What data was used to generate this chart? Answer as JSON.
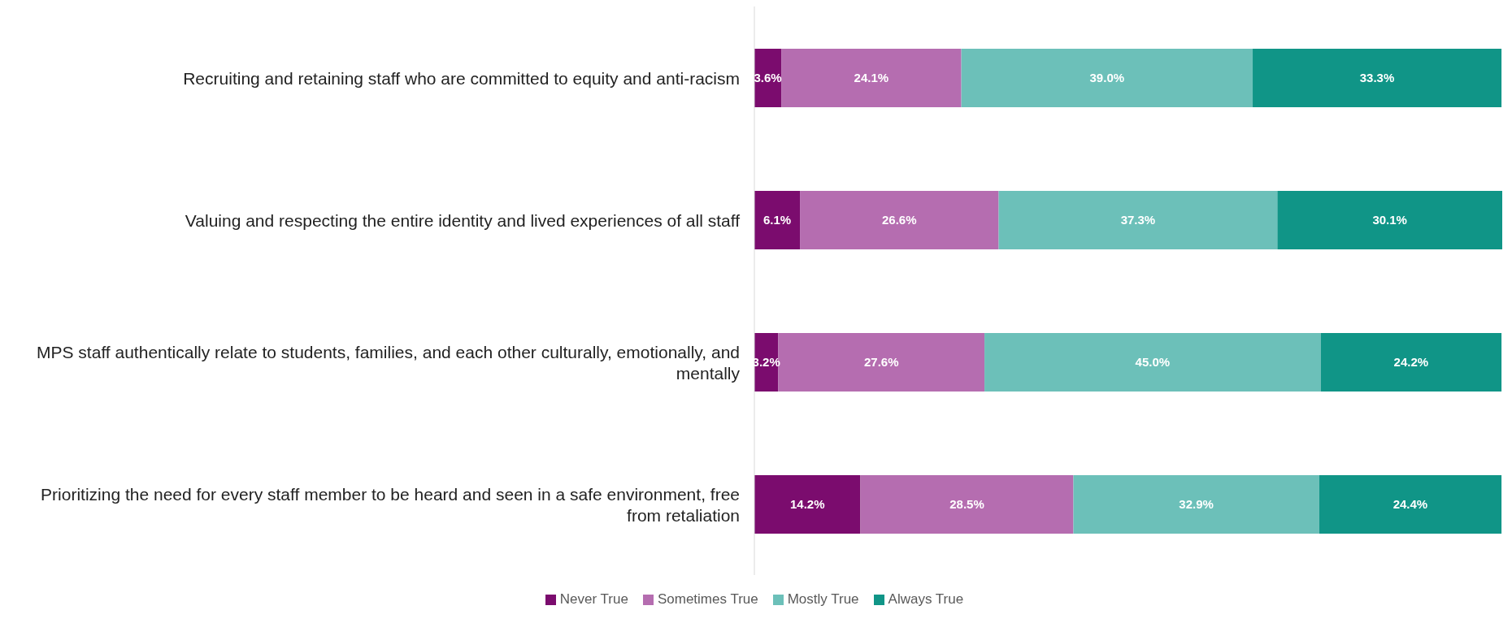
{
  "chart_data": {
    "type": "bar",
    "orientation": "horizontal",
    "stacked": true,
    "legend": "bottom",
    "grid": false,
    "categories": [
      "Recruiting and retaining staff who are committed to equity and anti-racism",
      "Valuing and respecting the entire identity and lived experiences of all staff",
      "MPS staff authentically relate to students, families, and each other culturally, emotionally, and mentally",
      "Prioritizing the need for every staff member to be heard and seen in a safe environment, free from retaliation"
    ],
    "series": [
      {
        "name": "Never True",
        "color": "#7b0c6e",
        "values": [
          3.6,
          6.1,
          3.2,
          14.2
        ],
        "value_labels": [
          "3.6%",
          "6.1%",
          "3.2%",
          "14.2%"
        ]
      },
      {
        "name": "Sometimes True",
        "color": "#b56db0",
        "values": [
          24.1,
          26.6,
          27.6,
          28.5
        ],
        "value_labels": [
          "24.1%",
          "26.6%",
          "27.6%",
          "28.5%"
        ]
      },
      {
        "name": "Mostly True",
        "color": "#6cc0b9",
        "values": [
          39.0,
          37.3,
          45.0,
          32.9
        ],
        "value_labels": [
          "39.0%",
          "37.3%",
          "45.0%",
          "32.9%"
        ]
      },
      {
        "name": "Always True",
        "color": "#109587",
        "values": [
          33.3,
          30.1,
          24.2,
          24.4
        ],
        "value_labels": [
          "33.3%",
          "30.1%",
          "24.2%",
          "24.4%"
        ]
      }
    ]
  }
}
